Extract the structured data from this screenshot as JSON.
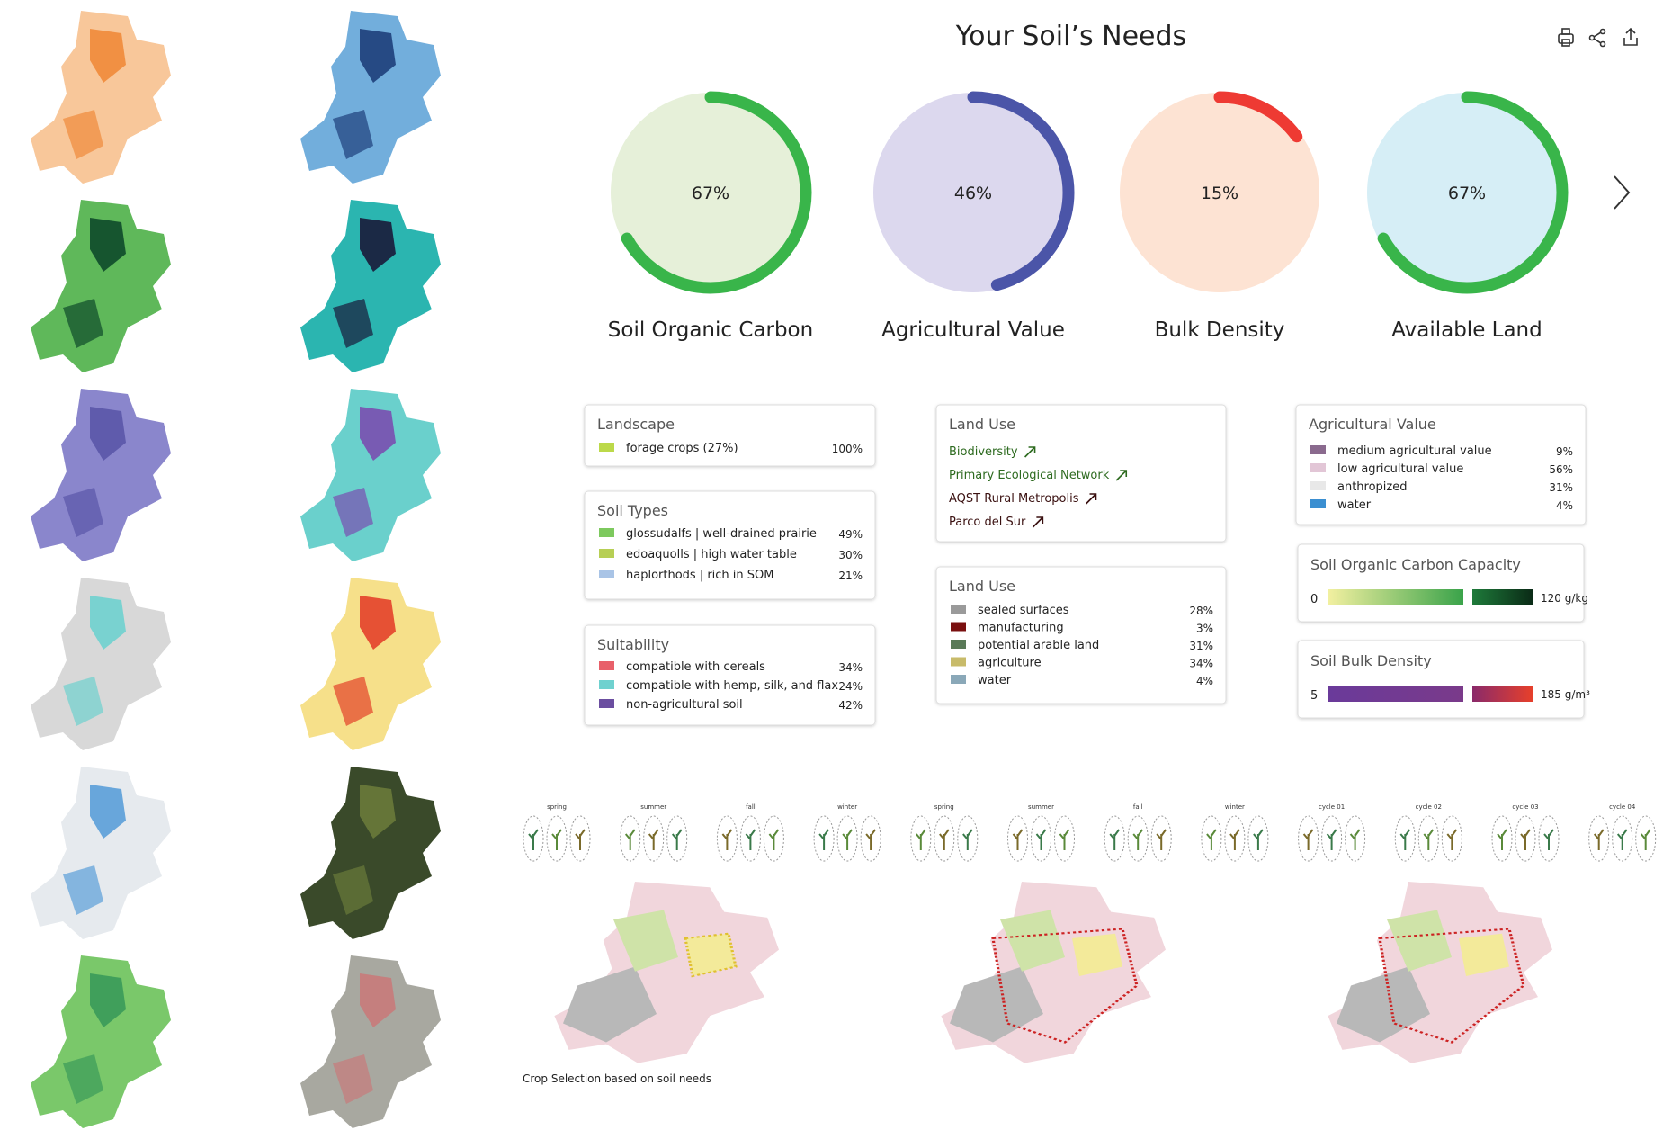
{
  "header": {
    "title": "Your Soil’s Needs"
  },
  "gauges": [
    {
      "label": "Soil Organic Carbon",
      "value": 67,
      "value_label": "67%",
      "color": "#39b54a",
      "fill": "#e6f0d9"
    },
    {
      "label": "Agricultural Value",
      "value": 46,
      "value_label": "46%",
      "color": "#4b55a8",
      "fill": "#dcd8ee"
    },
    {
      "label": "Bulk Density",
      "value": 15,
      "value_label": "15%",
      "color": "#ee3a33",
      "fill": "#fde3d3"
    },
    {
      "label": "Available Land",
      "value": 67,
      "value_label": "67%",
      "color": "#39b54a",
      "fill": "#d6eef6"
    }
  ],
  "panels": {
    "landscape": {
      "title": "Landscape",
      "items": [
        {
          "label": "forage crops (27%)",
          "percent": "100%",
          "color": "#bcd94a"
        }
      ]
    },
    "soil_types": {
      "title": "Soil Types",
      "items": [
        {
          "label": "glossudalfs | well-drained prairie",
          "percent": "49%",
          "color": "#7dc95e"
        },
        {
          "label": "edoaquolls | high water table",
          "percent": "30%",
          "color": "#b7cf55"
        },
        {
          "label": "haplorthods | rich in SOM",
          "percent": "21%",
          "color": "#a9c4e6"
        }
      ]
    },
    "suitability": {
      "title": "Suitability",
      "items": [
        {
          "label": "compatible with cereals",
          "percent": "34%",
          "color": "#e8606a"
        },
        {
          "label": "compatible with hemp, silk, and flax",
          "percent": "24%",
          "color": "#6fd1cf"
        },
        {
          "label": "non-agricultural soil",
          "percent": "42%",
          "color": "#6b4ea0"
        }
      ]
    },
    "land_use_links": {
      "title": "Land Use",
      "links": [
        {
          "label": "Biodiversity",
          "color": "#2d6a1f"
        },
        {
          "label": "Primary Ecological Network",
          "color": "#2d6a1f"
        },
        {
          "label": "AQST Rural Metropolis",
          "color": "#3a1010"
        },
        {
          "label": "Parco del Sur",
          "color": "#3a1010"
        }
      ]
    },
    "land_use": {
      "title": "Land Use",
      "items": [
        {
          "label": "sealed surfaces",
          "percent": "28%",
          "color": "#9a9a9a"
        },
        {
          "label": "manufacturing",
          "percent": "3%",
          "color": "#7a1010"
        },
        {
          "label": "potential arable land",
          "percent": "31%",
          "color": "#5a7a58"
        },
        {
          "label": "agriculture",
          "percent": "34%",
          "color": "#c8bb6a"
        },
        {
          "label": "water",
          "percent": "4%",
          "color": "#8aa8b8"
        }
      ]
    },
    "agricultural_value": {
      "title": "Agricultural Value",
      "items": [
        {
          "label": "medium agricultural value",
          "percent": "9%",
          "color": "#8a6a8e"
        },
        {
          "label": "low agricultural value",
          "percent": "56%",
          "color": "#e2c6d6"
        },
        {
          "label": "anthropized",
          "percent": "31%",
          "color": "#e8e8e8"
        },
        {
          "label": "water",
          "percent": "4%",
          "color": "#3b8fd1"
        }
      ]
    },
    "soc_capacity": {
      "title": "Soil Organic Carbon Capacity",
      "min": "0",
      "max": "120 g/kg"
    },
    "bulk_density": {
      "title": "Soil Bulk Density",
      "min": "5",
      "max": "185 g/m³"
    }
  },
  "crop_selection": {
    "stages": [
      "spring",
      "summer",
      "fall",
      "winter",
      "spring",
      "summer",
      "fall",
      "winter",
      "cycle 01",
      "cycle 02",
      "cycle 03",
      "cycle 04"
    ],
    "caption": "Crop Selection based on soil needs"
  }
}
